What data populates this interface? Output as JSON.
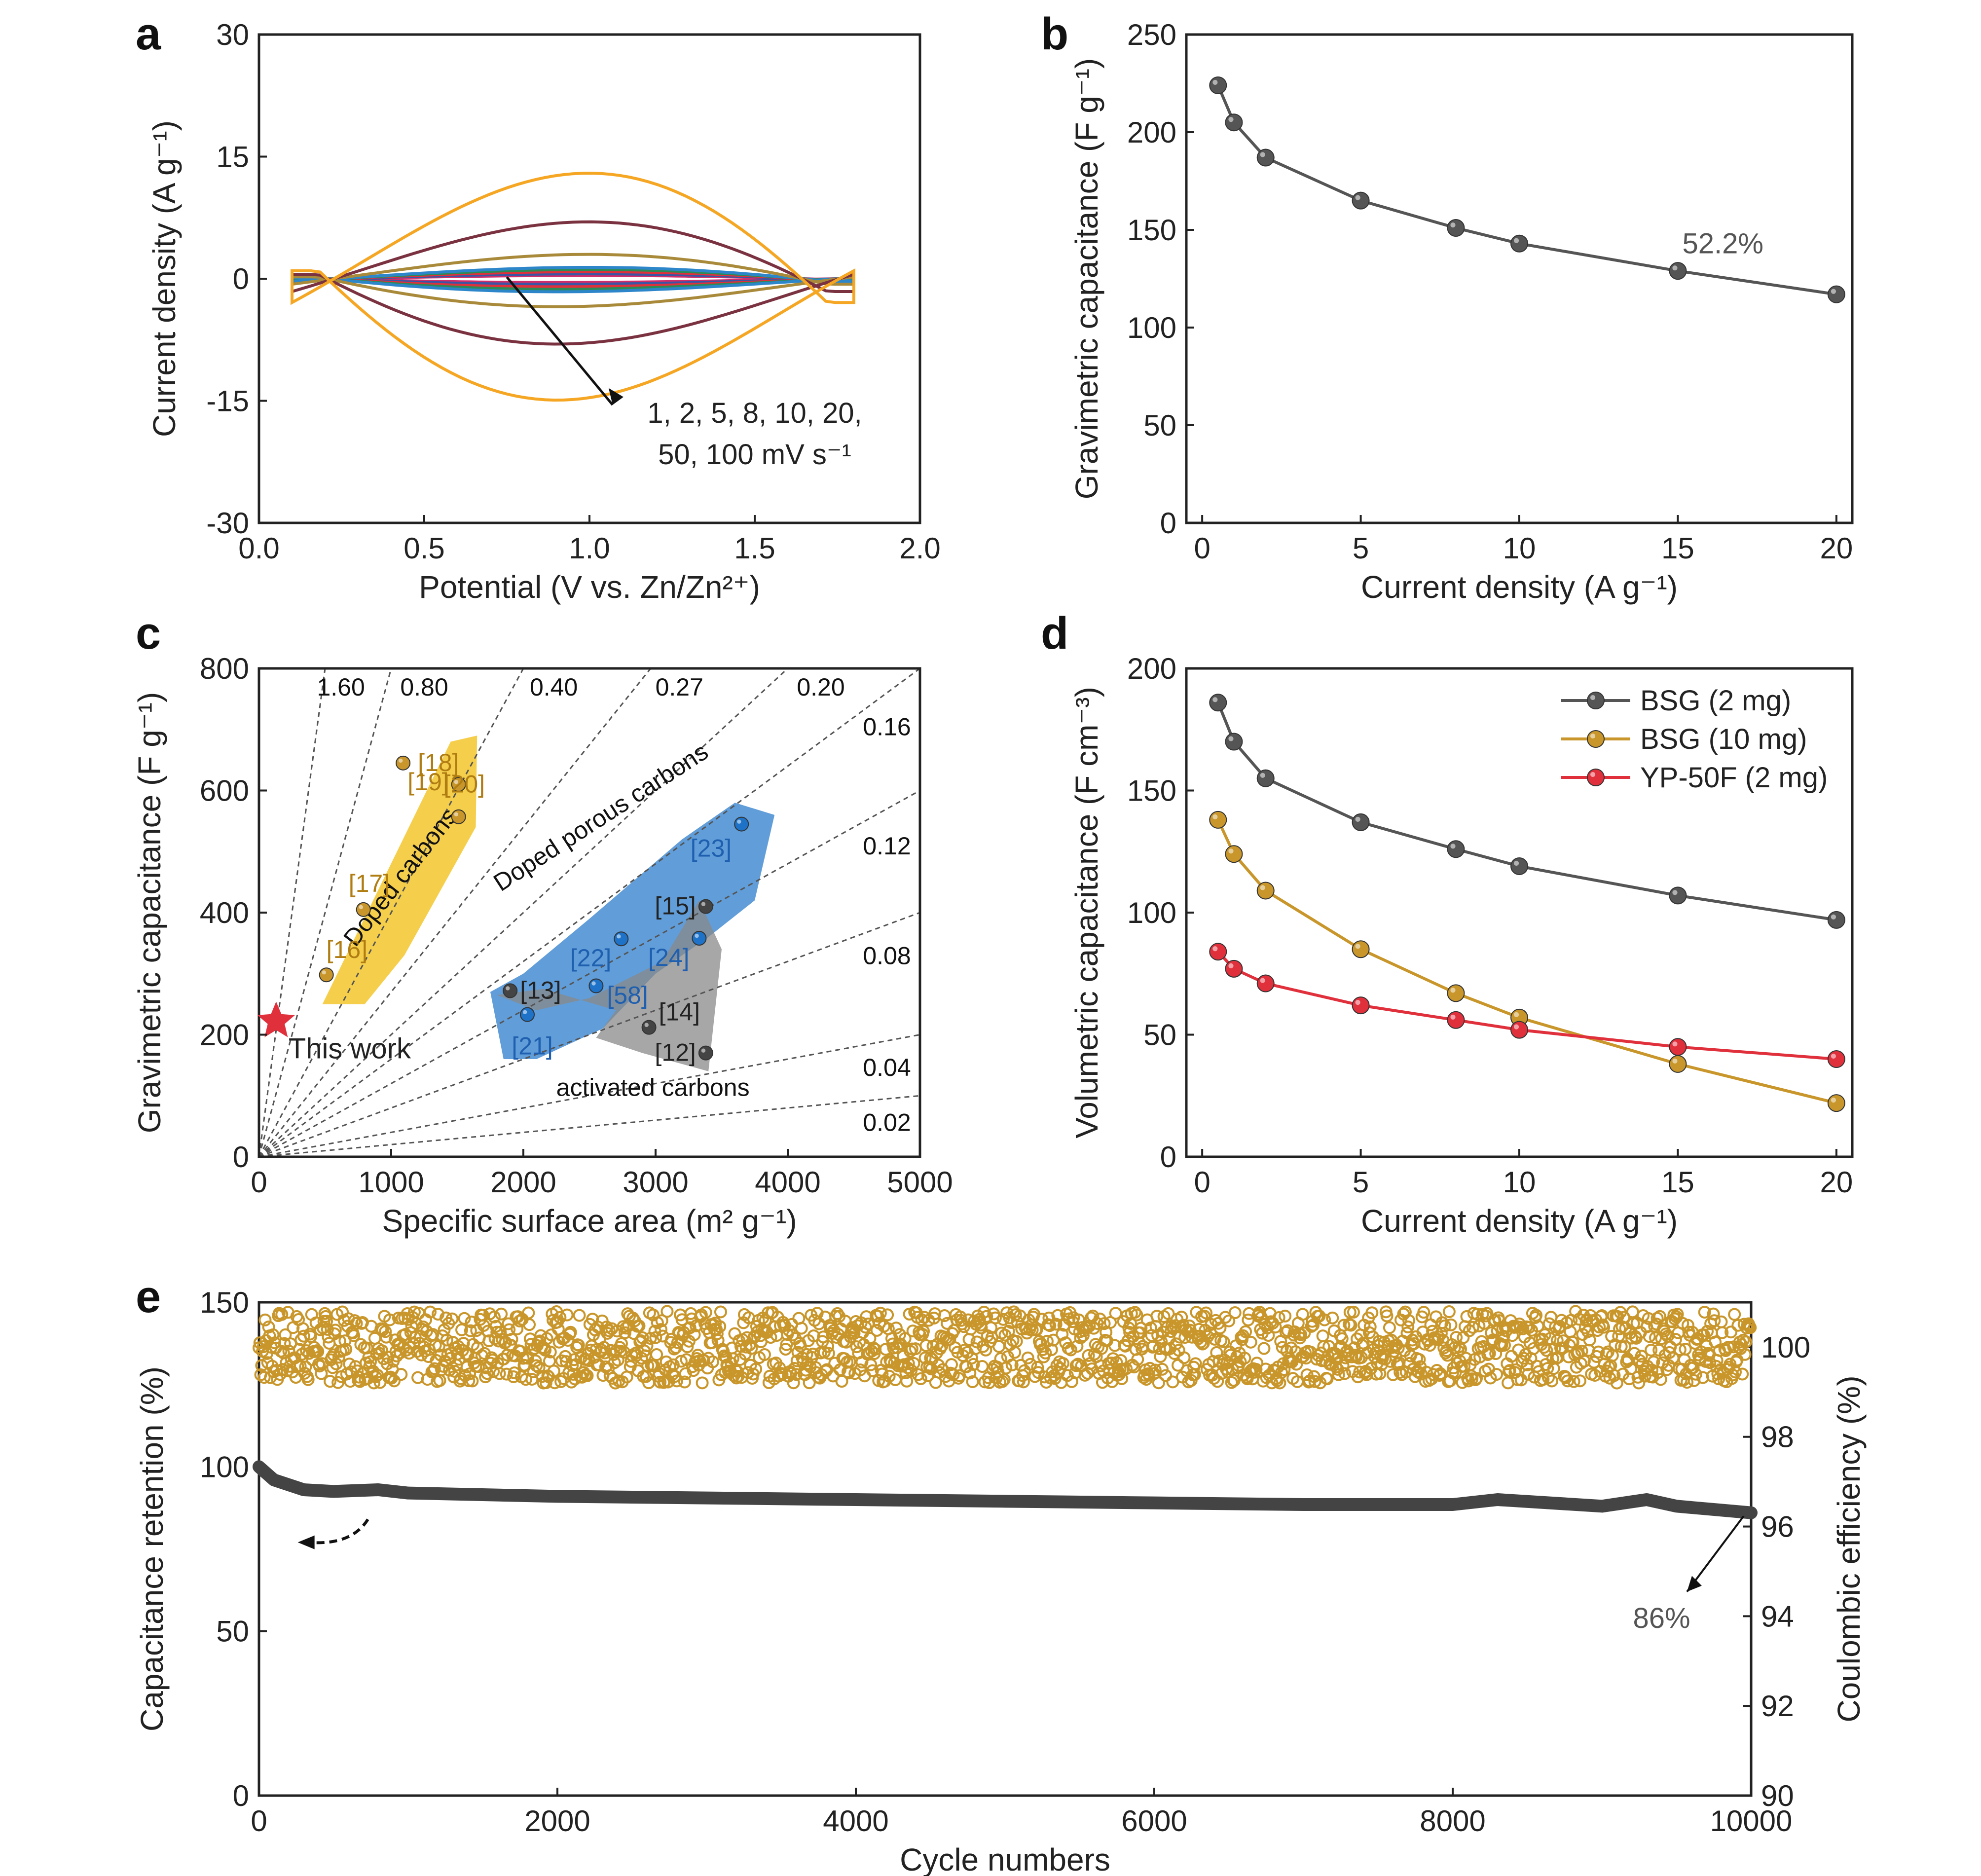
{
  "colors": {
    "gray": "#555555",
    "gold": "#C8962A",
    "red": "#E0303C",
    "blue": "#1E73C8",
    "yellow": "#F2C21A",
    "cv_orange": "#F5A623",
    "cv_maroon": "#7A3240",
    "cv_olive": "#A88A3A"
  },
  "chart_data": [
    {
      "panel": "a",
      "type": "line",
      "xlabel": "Potential (V vs. Zn/Zn²⁺)",
      "ylabel": "Current density (A g⁻¹)",
      "xlim": [
        0.0,
        2.0
      ],
      "ylim": [
        -30,
        30
      ],
      "xticks": [
        "0.0",
        "0.5",
        "1.0",
        "1.5",
        "2.0"
      ],
      "yticks": [
        "30",
        "15",
        "0",
        "-15",
        "-30"
      ],
      "annotation_line1": "1, 2, 5, 8, 10, 20,",
      "annotation_line2": "50, 100 mV s⁻¹",
      "series": [
        {
          "scan_rate": 1,
          "amplitude": 0.6,
          "color": "#D12C6A"
        },
        {
          "scan_rate": 2,
          "amplitude": 0.9,
          "color": "#3A55A4"
        },
        {
          "scan_rate": 5,
          "amplitude": 1.3,
          "color": "#E0303C"
        },
        {
          "scan_rate": 8,
          "amplitude": 1.7,
          "color": "#2D8A57"
        },
        {
          "scan_rate": 10,
          "amplitude": 2.1,
          "color": "#2C86C9"
        },
        {
          "scan_rate": 20,
          "amplitude": 4.5,
          "color": "#A88A3A"
        },
        {
          "scan_rate": 50,
          "amplitude": 10.5,
          "color": "#7A3240"
        },
        {
          "scan_rate": 100,
          "amplitude": 19.5,
          "color": "#F5A623"
        }
      ]
    },
    {
      "panel": "b",
      "type": "line",
      "xlabel": "Current density (A g⁻¹)",
      "ylabel": "Gravimetric capacitance (F g⁻¹)",
      "xlim": [
        -0.5,
        20.5
      ],
      "ylim": [
        0,
        250
      ],
      "xticks": [
        "0",
        "5",
        "10",
        "15",
        "20"
      ],
      "yticks": [
        "0",
        "50",
        "100",
        "150",
        "200",
        "250"
      ],
      "x": [
        0.5,
        1,
        2,
        5,
        8,
        10,
        15,
        20
      ],
      "values": [
        224,
        205,
        187,
        165,
        151,
        143,
        129,
        117
      ],
      "annotation": "52.2%"
    },
    {
      "panel": "c",
      "type": "scatter",
      "xlabel": "Specific surface area (m² g⁻¹)",
      "ylabel": "Gravimetric capacitance (F g⁻¹)",
      "xlim": [
        0,
        5000
      ],
      "ylim": [
        0,
        800
      ],
      "xticks": [
        "0",
        "1000",
        "2000",
        "3000",
        "4000",
        "5000"
      ],
      "yticks": [
        "0",
        "200",
        "400",
        "600",
        "800"
      ],
      "slopes": [
        "1.60",
        "0.80",
        "0.40",
        "0.27",
        "0.20",
        "0.16",
        "0.12",
        "0.08",
        "0.04",
        "0.02"
      ],
      "regions": {
        "doped_carbons": "Doped carbons",
        "doped_porous_carbons": "Doped porous carbons",
        "activated_carbons": "activated carbons"
      },
      "this_work": {
        "label": "This work",
        "x": 130,
        "y": 222
      },
      "points": [
        {
          "ref": "[18]",
          "x": 1090,
          "y": 645,
          "group": "doped"
        },
        {
          "ref": "[19]",
          "x": 1510,
          "y": 610,
          "group": "doped"
        },
        {
          "ref": "[20]",
          "x": 1510,
          "y": 557,
          "group": "doped"
        },
        {
          "ref": "[17]",
          "x": 790,
          "y": 405,
          "group": "doped"
        },
        {
          "ref": "[16]",
          "x": 510,
          "y": 298,
          "group": "doped"
        },
        {
          "ref": "[23]",
          "x": 3650,
          "y": 545,
          "group": "porous"
        },
        {
          "ref": "[15]",
          "x": 3380,
          "y": 410,
          "group": "activated"
        },
        {
          "ref": "[22]",
          "x": 2740,
          "y": 357,
          "group": "porous"
        },
        {
          "ref": "[24]",
          "x": 3330,
          "y": 358,
          "group": "porous"
        },
        {
          "ref": "[13]",
          "x": 1900,
          "y": 272,
          "group": "activated"
        },
        {
          "ref": "[58]",
          "x": 2550,
          "y": 280,
          "group": "porous"
        },
        {
          "ref": "[21]",
          "x": 2030,
          "y": 233,
          "group": "porous"
        },
        {
          "ref": "[14]",
          "x": 2950,
          "y": 212,
          "group": "activated"
        },
        {
          "ref": "[12]",
          "x": 3380,
          "y": 170,
          "group": "activated"
        }
      ]
    },
    {
      "panel": "d",
      "type": "line",
      "xlabel": "Current density (A g⁻¹)",
      "ylabel": "Volumetric capacitance (F cm⁻³)",
      "xlim": [
        -0.5,
        20.5
      ],
      "ylim": [
        0,
        200
      ],
      "xticks": [
        "0",
        "5",
        "10",
        "15",
        "20"
      ],
      "yticks": [
        "0",
        "50",
        "100",
        "150",
        "200"
      ],
      "x": [
        0.5,
        1,
        2,
        5,
        8,
        10,
        15,
        20
      ],
      "series": [
        {
          "name": "BSG (2 mg)",
          "color": "#555555",
          "values": [
            186,
            170,
            155,
            137,
            126,
            119,
            107,
            97
          ]
        },
        {
          "name": "BSG (10 mg)",
          "color": "#C8962A",
          "values": [
            138,
            124,
            109,
            85,
            67,
            57,
            38,
            22
          ]
        },
        {
          "name": "YP-50F (2 mg)",
          "color": "#E0303C",
          "values": [
            84,
            77,
            71,
            62,
            56,
            52,
            45,
            40
          ]
        }
      ],
      "legend": "top-right"
    },
    {
      "panel": "e",
      "type": "scatter",
      "xlabel": "Cycle numbers",
      "ylabel": "Capacitance retention (%)",
      "y2label": "Coulombic efficiency (%)",
      "xlim": [
        0,
        10000
      ],
      "ylim": [
        0,
        150
      ],
      "y2lim": [
        90,
        101
      ],
      "xticks": [
        "0",
        "2000",
        "4000",
        "6000",
        "8000",
        "10000"
      ],
      "yticks": [
        "0",
        "50",
        "100",
        "150"
      ],
      "y2ticks": [
        "90",
        "92",
        "94",
        "96",
        "98",
        "100"
      ],
      "retention": {
        "x": [
          0,
          100,
          300,
          500,
          800,
          1000,
          2000,
          3000,
          4000,
          5000,
          6000,
          7000,
          8000,
          8300,
          9000,
          9300,
          9500,
          10000
        ],
        "values": [
          100,
          96,
          93,
          92.5,
          93,
          92,
          91,
          90.5,
          90,
          89.5,
          89,
          88.5,
          88.5,
          90,
          88,
          90,
          88,
          86
        ]
      },
      "coulombic_mean": 100,
      "annotation": "86%"
    }
  ]
}
